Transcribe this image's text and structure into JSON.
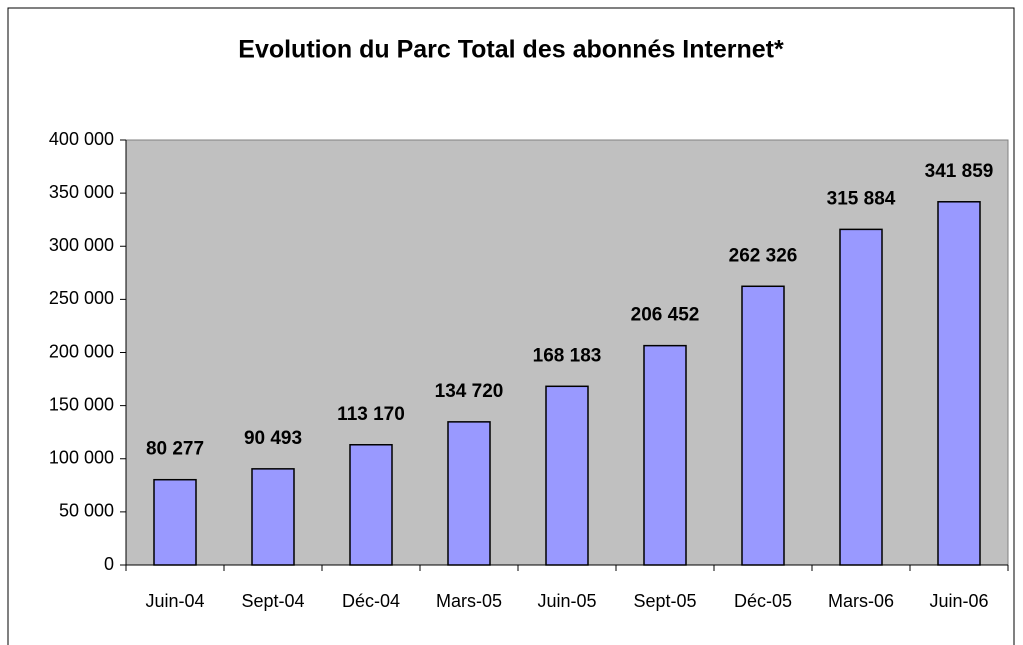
{
  "chart_data": {
    "type": "bar",
    "title": "Evolution du Parc Total des abonnés Internet*",
    "categories": [
      "Juin-04",
      "Sept-04",
      "Déc-04",
      "Mars-05",
      "Juin-05",
      "Sept-05",
      "Déc-05",
      "Mars-06",
      "Juin-06"
    ],
    "values": [
      80277,
      90493,
      113170,
      134720,
      168183,
      206452,
      262326,
      315884,
      341859
    ],
    "value_labels": [
      "80 277",
      "90 493",
      "113 170",
      "134 720",
      "168 183",
      "206 452",
      "262 326",
      "315 884",
      "341 859"
    ],
    "color": "#9999ff",
    "ylim": [
      0,
      400000
    ],
    "yticks": [
      0,
      {
        "value": 50000,
        "label": "50 000"
      },
      {
        "value": 100000,
        "label": "100 000"
      },
      {
        "value": 150000,
        "label": "150 000"
      },
      {
        "value": 200000,
        "label": "200 000"
      },
      {
        "value": 250000,
        "label": "250 000"
      },
      {
        "value": 300000,
        "label": "300 000"
      },
      {
        "value": 350000,
        "label": "350 000"
      },
      {
        "value": 400000,
        "label": "400 000"
      }
    ],
    "grid": false
  }
}
